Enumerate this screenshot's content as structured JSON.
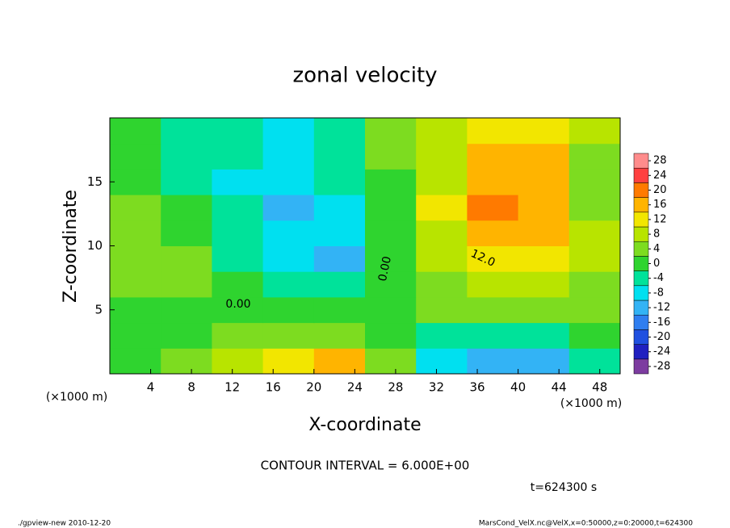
{
  "chart_data": {
    "type": "contour",
    "title": "zonal velocity",
    "xlabel": "X-coordinate",
    "ylabel": "Z-coordinate",
    "xunit": "(×1000 m)",
    "yunit": "(×1000 m)",
    "xlim": [
      0,
      50
    ],
    "ylim": [
      0,
      20
    ],
    "xticks": [
      4,
      8,
      12,
      16,
      20,
      24,
      28,
      32,
      36,
      40,
      44,
      48
    ],
    "yticks": [
      5,
      10,
      15
    ],
    "x": [
      2.5,
      7.5,
      12.5,
      17.5,
      22.5,
      27.5,
      32.5,
      37.5,
      42.5,
      47.5
    ],
    "z": [
      1,
      3,
      5,
      7,
      9,
      11,
      13,
      15,
      17,
      19
    ],
    "values": [
      [
        -2,
        4,
        8,
        10,
        14,
        2,
        -10,
        -14,
        -12,
        -4
      ],
      [
        -2,
        0,
        2,
        4,
        4,
        -2,
        -6,
        -6,
        -4,
        -2
      ],
      [
        -2,
        -2,
        0,
        0,
        0,
        0,
        2,
        2,
        2,
        4
      ],
      [
        2,
        2,
        0,
        -4,
        -6,
        0,
        4,
        6,
        6,
        4
      ],
      [
        4,
        2,
        -4,
        -8,
        -12,
        -2,
        6,
        12,
        10,
        6
      ],
      [
        4,
        0,
        -6,
        -10,
        -8,
        -2,
        8,
        16,
        14,
        6
      ],
      [
        2,
        -2,
        -6,
        -12,
        -8,
        0,
        10,
        18,
        16,
        4
      ],
      [
        0,
        -4,
        -8,
        -10,
        -6,
        0,
        8,
        16,
        14,
        4
      ],
      [
        0,
        -4,
        -6,
        -8,
        -6,
        2,
        6,
        14,
        14,
        4
      ],
      [
        0,
        -4,
        -6,
        -8,
        -6,
        2,
        6,
        12,
        12,
        6
      ]
    ],
    "colorbar_lim": [
      -30,
      30
    ],
    "colorbar_ticks": [
      28,
      24,
      20,
      16,
      12,
      8,
      4,
      0,
      -4,
      -8,
      -12,
      -16,
      -20,
      -24,
      -28
    ],
    "colors": [
      "#7d3ca0",
      "#2020c0",
      "#2050e0",
      "#2f7ef0",
      "#33b3f5",
      "#00e0f0",
      "#00e29a",
      "#2fd42f",
      "#7ddc20",
      "#b8e400",
      "#f2e600",
      "#ffb400",
      "#ff7a00",
      "#ff4040",
      "#ff8c8c"
    ],
    "contour_labels": [
      {
        "value": 0,
        "label": "0.00"
      },
      {
        "value": 0,
        "label": "0.00"
      },
      {
        "value": 12,
        "label": "12.0"
      }
    ],
    "contour_interval": "CONTOUR INTERVAL = 6.000E+00",
    "time": "t=624300 s",
    "footer_left": "./gpview-new  2010-12-20",
    "footer_right": "MarsCond_VelX.nc@VelX,x=0:50000,z=0:20000,t=624300"
  }
}
